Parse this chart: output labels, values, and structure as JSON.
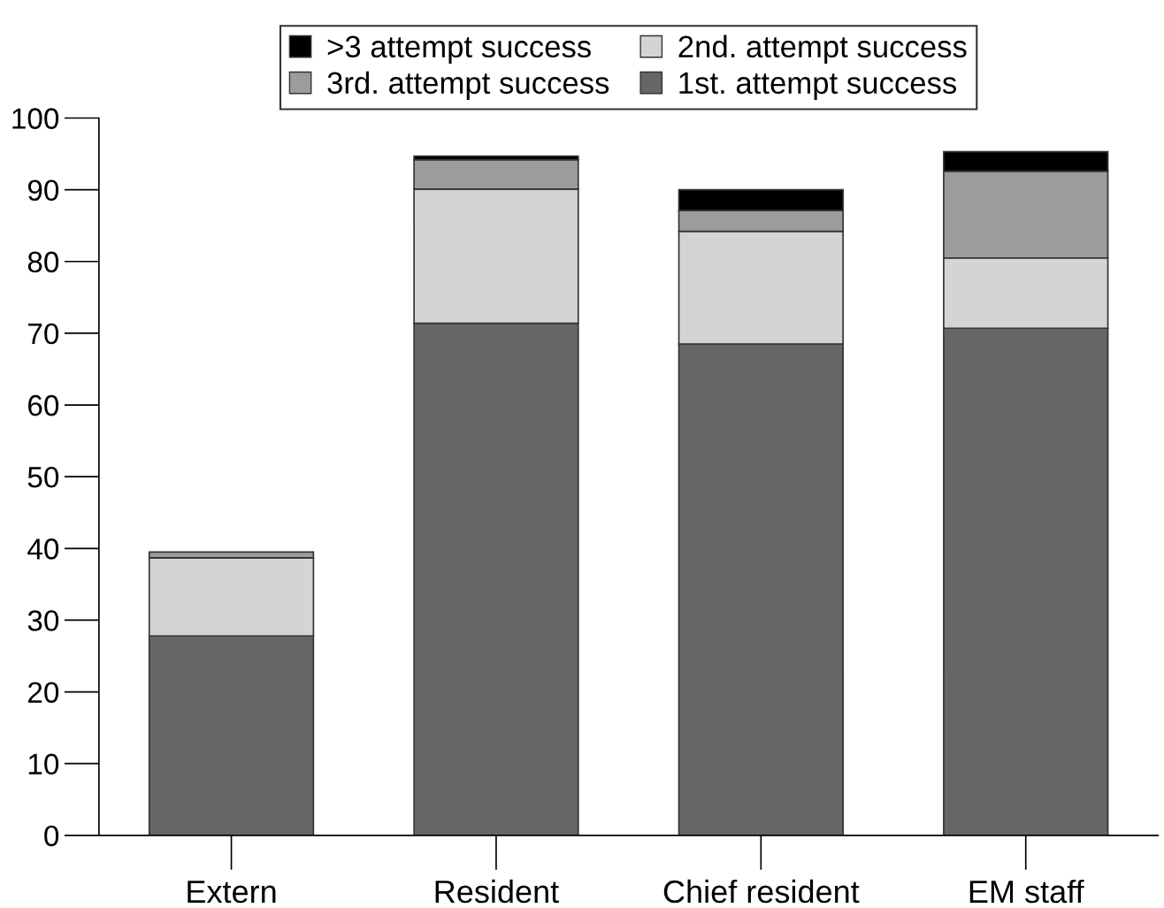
{
  "chart_data": {
    "type": "bar",
    "stacked": true,
    "categories": [
      "Extern",
      "Resident",
      "Chief resident",
      "EM staff"
    ],
    "series": [
      {
        "name": "1st. attempt success",
        "color": "#666666",
        "values": [
          27.8,
          71.4,
          68.5,
          70.7
        ]
      },
      {
        "name": "2nd. attempt success",
        "color": "#d4d4d4",
        "values": [
          10.9,
          18.7,
          15.7,
          9.8
        ]
      },
      {
        "name": "3rd. attempt success",
        "color": "#9c9c9c",
        "values": [
          0.8,
          4.1,
          2.9,
          12.1
        ]
      },
      {
        "name": ">3 attempt success",
        "color": "#000000",
        "values": [
          null,
          0.5,
          2.9,
          2.7
        ]
      }
    ],
    "ylim": [
      0,
      100
    ],
    "yticks": [
      0,
      10,
      20,
      30,
      40,
      50,
      60,
      70,
      80,
      90,
      100
    ],
    "grid": false,
    "legend": "top"
  }
}
